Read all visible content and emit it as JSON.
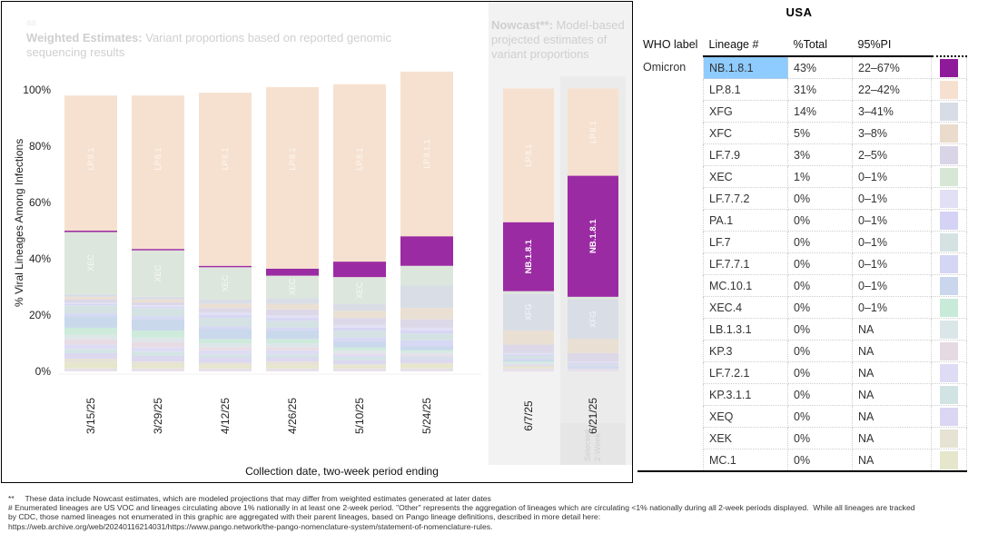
{
  "header": {
    "tiny_label": "aa",
    "weighted_title_bold": "Weighted Estimates:",
    "weighted_title_rest": " Variant proportions based on reported genomic sequencing results",
    "nowcast_title_bold": "Nowcast**:",
    "nowcast_title_rest": " Model-based projected estimates of variant proportions",
    "selected_label": "Selected 2-Week"
  },
  "chart_data": {
    "type": "bar",
    "stacked": true,
    "title": "Weighted Estimates: Variant proportions based on reported genomic sequencing results",
    "xlabel": "Collection date, two-week period ending",
    "ylabel": "% Viral Lineages Among Infections",
    "ylim": [
      0,
      100
    ],
    "yticks": [
      "0%",
      "20%",
      "40%",
      "60%",
      "80%",
      "100%"
    ],
    "categories": [
      "3/15/25",
      "3/29/25",
      "4/12/25",
      "4/26/25",
      "5/10/25",
      "5/24/25",
      "6/7/25",
      "6/21/25"
    ],
    "nowcast_categories": [
      "6/7/25",
      "6/21/25"
    ],
    "selected_category": "6/21/25",
    "series": [
      {
        "name": "Other lineages",
        "color": "#e8e0ec",
        "values": [
          1,
          1,
          1,
          1,
          1,
          1,
          1,
          1
        ]
      },
      {
        "name": "MC.1",
        "color": "#e6e6cc",
        "values": [
          2,
          1.5,
          1,
          1,
          1,
          1.5,
          0.5,
          0
        ]
      },
      {
        "name": "XEK",
        "color": "#e6e2d4",
        "values": [
          1.5,
          1,
          1,
          1.5,
          0.5,
          0.5,
          0.5,
          0
        ]
      },
      {
        "name": "XEQ",
        "color": "#dcd8f0",
        "values": [
          2,
          2,
          2,
          1.5,
          1.5,
          1.5,
          0.5,
          0
        ]
      },
      {
        "name": "KP.3.1.1",
        "color": "#d3e4e4",
        "values": [
          1.5,
          1.5,
          1,
          1,
          1,
          0.5,
          0,
          0
        ]
      },
      {
        "name": "LF.7.2.1",
        "color": "#dedcf4",
        "values": [
          1.5,
          1.5,
          1.5,
          1.5,
          1,
          0.5,
          0,
          0
        ]
      },
      {
        "name": "KP.3",
        "color": "#e8dce4",
        "values": [
          2,
          2,
          1,
          1,
          0.5,
          0.5,
          0,
          0
        ]
      },
      {
        "name": "LB.1.3.1",
        "color": "#dde6e8",
        "values": [
          1.5,
          1.5,
          1.5,
          1.5,
          1,
          1,
          0.5,
          0
        ]
      },
      {
        "name": "XEC.4",
        "color": "#cdeadb",
        "values": [
          2.5,
          2.5,
          1.5,
          1.5,
          1,
          0.5,
          0.5,
          0
        ]
      },
      {
        "name": "MC.10.1",
        "color": "#cad8ec",
        "values": [
          4,
          4,
          3.5,
          3,
          2,
          1.5,
          0.5,
          0.5
        ]
      },
      {
        "name": "LF.7.7.1",
        "color": "#d6d8f4",
        "values": [
          1,
          1,
          1,
          1,
          1.5,
          2,
          0.5,
          0.5
        ]
      },
      {
        "name": "LF.7",
        "color": "#d4e2e4",
        "values": [
          3,
          3,
          3,
          2.5,
          2.5,
          2.5,
          1,
          0.5
        ]
      },
      {
        "name": "PA.1",
        "color": "#d7d6f4",
        "values": [
          0.5,
          0.5,
          1,
          1,
          1,
          1,
          0.5,
          0.5
        ]
      },
      {
        "name": "LF.7.7.2",
        "color": "#e2e0f4",
        "values": [
          0.5,
          0.5,
          1,
          1,
          1,
          1,
          0.5,
          0.5
        ]
      },
      {
        "name": "LF.7.9",
        "color": "#dcd8e8",
        "values": [
          1,
          1,
          1.5,
          2,
          2.5,
          3,
          3,
          3
        ]
      },
      {
        "name": "XFC",
        "color": "#eadfd3",
        "values": [
          1,
          1,
          1.5,
          2,
          2.5,
          4,
          5,
          5
        ]
      },
      {
        "name": "XFG",
        "color": "#d9dde6",
        "values": [
          1,
          1,
          1.5,
          2,
          2.5,
          8,
          13,
          14
        ]
      },
      {
        "name": "XEC",
        "color": "#dde6dc",
        "values": [
          22,
          16.5,
          11.5,
          8,
          9.5,
          7,
          1,
          1
        ]
      },
      {
        "name": "NB.1.8.1",
        "color": "#9b2ba3",
        "values": [
          0.5,
          0.5,
          0.5,
          2.5,
          5.5,
          10.5,
          24.5,
          43
        ]
      },
      {
        "name": "LP.8.1",
        "color": "#f6e1d0",
        "values": [
          48,
          54.5,
          61.5,
          64.5,
          63,
          58.5,
          47.5,
          31
        ]
      }
    ],
    "segment_labels": [
      {
        "series": "LP.8.1",
        "text": "LP.8.1",
        "categories": [
          "3/15/25",
          "3/29/25",
          "4/12/25",
          "4/26/25",
          "5/10/25",
          "6/7/25",
          "6/21/25"
        ]
      },
      {
        "series": "LP.8.1",
        "text": "LP.8.1.1",
        "categories": [
          "5/24/25"
        ]
      },
      {
        "series": "XEC",
        "text": "XEC",
        "categories": [
          "3/15/25",
          "3/29/25",
          "4/12/25",
          "4/26/25",
          "5/10/25"
        ]
      },
      {
        "series": "NB.1.8.1",
        "text": "NB.1.8.1",
        "categories": [
          "6/7/25",
          "6/21/25"
        ]
      },
      {
        "series": "XFG",
        "text": "XFG",
        "categories": [
          "6/7/25",
          "6/21/25"
        ]
      }
    ],
    "legend": "table-right"
  },
  "table": {
    "title": "USA",
    "headers": [
      "WHO label",
      "Lineage #",
      "%Total",
      "95%PI",
      ""
    ],
    "who_label": "Omicron",
    "highlighted_lineage": "NB.1.8.1",
    "rows": [
      {
        "lineage": "NB.1.8.1",
        "pct": "43%",
        "pi": "22–67%",
        "color": "#8e1a9a"
      },
      {
        "lineage": "LP.8.1",
        "pct": "31%",
        "pi": "22–42%",
        "color": "#f6e1d0"
      },
      {
        "lineage": "XFG",
        "pct": "14%",
        "pi": "3–41%",
        "color": "#d7dce6"
      },
      {
        "lineage": "XFC",
        "pct": "5%",
        "pi": "3–8%",
        "color": "#eadbcd"
      },
      {
        "lineage": "LF.7.9",
        "pct": "3%",
        "pi": "2–5%",
        "color": "#d9d4e6"
      },
      {
        "lineage": "XEC",
        "pct": "1%",
        "pi": "0–1%",
        "color": "#d6e7d6"
      },
      {
        "lineage": "LF.7.7.2",
        "pct": "0%",
        "pi": "0–1%",
        "color": "#e2e0f4"
      },
      {
        "lineage": "PA.1",
        "pct": "0%",
        "pi": "0–1%",
        "color": "#d4d3f5"
      },
      {
        "lineage": "LF.7",
        "pct": "0%",
        "pi": "0–1%",
        "color": "#d4e2e2"
      },
      {
        "lineage": "LF.7.7.1",
        "pct": "0%",
        "pi": "0–1%",
        "color": "#d5d6f4"
      },
      {
        "lineage": "MC.10.1",
        "pct": "0%",
        "pi": "0–1%",
        "color": "#c9d6ec"
      },
      {
        "lineage": "XEC.4",
        "pct": "0%",
        "pi": "0–1%",
        "color": "#c8ead8"
      },
      {
        "lineage": "LB.1.3.1",
        "pct": "0%",
        "pi": "NA",
        "color": "#dbe6e8"
      },
      {
        "lineage": "KP.3",
        "pct": "0%",
        "pi": "NA",
        "color": "#e6dae2"
      },
      {
        "lineage": "LF.7.2.1",
        "pct": "0%",
        "pi": "NA",
        "color": "#dedcf4"
      },
      {
        "lineage": "KP.3.1.1",
        "pct": "0%",
        "pi": "NA",
        "color": "#d1e3e2"
      },
      {
        "lineage": "XEQ",
        "pct": "0%",
        "pi": "NA",
        "color": "#dbd6f2"
      },
      {
        "lineage": "XEK",
        "pct": "0%",
        "pi": "NA",
        "color": "#e6e2d4"
      },
      {
        "lineage": "MC.1",
        "pct": "0%",
        "pi": "NA",
        "color": "#e6e6cc"
      }
    ]
  },
  "footnotes": [
    "**     These data include Nowcast estimates, which are modeled projections that may differ from weighted estimates generated at later dates",
    "# Enumerated lineages are US VOC and lineages circulating above 1% nationally in at least one 2-week period. \"Other\" represents the aggregation of lineages which are circulating <1% nationally during all 2-week periods displayed.  While all lineages are tracked",
    "by CDC, those named lineages not enumerated in this graphic are aggregated with their parent lineages, based on Pango lineage definitions, described in more detail here:",
    "https://web.archive.org/web/20240116214031/https://www.pango.network/the-pango-nomenclature-system/statement-of-nomenclature-rules."
  ]
}
